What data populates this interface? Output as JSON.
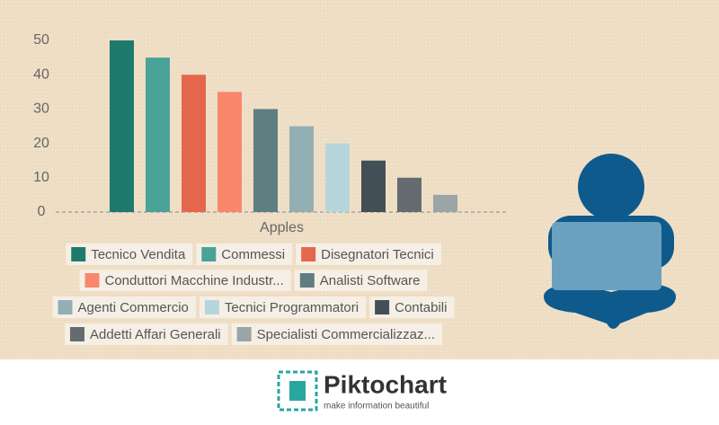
{
  "chart_data": {
    "type": "bar",
    "categories": [
      "Apples"
    ],
    "series": [
      {
        "name": "Tecnico Vendita",
        "color": "#1f7a6e",
        "values": [
          50
        ]
      },
      {
        "name": "Commessi",
        "color": "#4aa398",
        "values": [
          45
        ]
      },
      {
        "name": "Disegnatori Tecnici",
        "color": "#e5674b",
        "values": [
          40
        ]
      },
      {
        "name": "Conduttori Macchine Industr...",
        "color": "#fb876a",
        "values": [
          35
        ]
      },
      {
        "name": "Analisti Software",
        "color": "#5f7e82",
        "values": [
          30
        ]
      },
      {
        "name": "Agenti Commercio",
        "color": "#93afb4",
        "values": [
          25
        ]
      },
      {
        "name": "Tecnici Programmatori",
        "color": "#b7d5dc",
        "values": [
          20
        ]
      },
      {
        "name": "Contabili",
        "color": "#434f56",
        "values": [
          15
        ]
      },
      {
        "name": "Addetti Affari Generali",
        "color": "#646c70",
        "values": [
          10
        ]
      },
      {
        "name": "Specialisti Commercializzaz...",
        "color": "#9ba5a7",
        "values": [
          5
        ]
      }
    ],
    "ylim": [
      0,
      50
    ],
    "yticks": [
      0,
      10,
      20,
      30,
      40,
      50
    ],
    "grid": false,
    "legend": "bottom"
  },
  "footer": {
    "brand": "Piktochart",
    "tagline": "make information beautiful"
  }
}
